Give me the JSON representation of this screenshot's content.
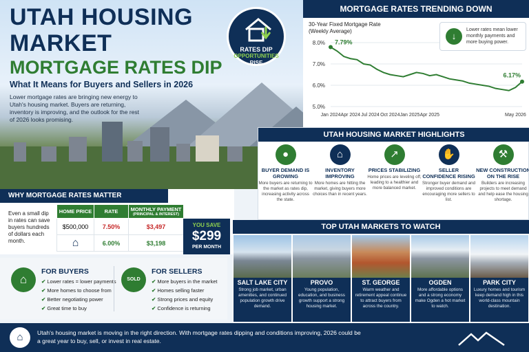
{
  "hero": {
    "title_line1": "UTAH HOUSING",
    "title_line2": "MARKET",
    "title_line3": "MORTGAGE RATES DIP",
    "subtitle": "What It Means for Buyers and Sellers in 2026",
    "intro": "Lower mortgage rates are bringing new energy to Utah's housing market. Buyers are returning, inventory is improving, and the outlook for the rest of 2026 looks promising.",
    "badge": {
      "line1": "RATES DIP",
      "line2": "OPPORTUNITIES",
      "line3": "RISE",
      "icon": "house-down-arrow-icon"
    }
  },
  "trend": {
    "header": "MORTGAGE RATES TRENDING DOWN",
    "chart_title": "30-Year Fixed Mortgage Rate",
    "chart_subtitle": "(Weekly Average)",
    "note": "Lower rates mean lower monthly payments and more buying power."
  },
  "chart_data": {
    "type": "line",
    "title": "30-Year Fixed Mortgage Rate",
    "subtitle": "(Weekly Average)",
    "x": [
      "Jan 2024",
      "Feb 2024",
      "Mar 2024",
      "Apr 2024",
      "May 2024",
      "Jun 2024",
      "Jul 2024",
      "Aug 2024",
      "Sep 2024",
      "Oct 2024",
      "Nov 2024",
      "Dec 2024",
      "Jan 2025",
      "Feb 2025",
      "Mar 2025",
      "Apr 2025",
      "May 2025",
      "Jun 2025",
      "Jul 2025",
      "Aug 2025",
      "Sep 2025",
      "Oct 2025",
      "Nov 2025",
      "Dec 2025",
      "Jan 2026",
      "Feb 2026",
      "Mar 2026",
      "Apr 2026",
      "May 2026",
      "Jun 2026"
    ],
    "values": [
      7.79,
      7.6,
      7.35,
      7.25,
      7.2,
      7.0,
      6.95,
      6.75,
      6.6,
      6.5,
      6.45,
      6.4,
      6.5,
      6.6,
      6.55,
      6.45,
      6.5,
      6.4,
      6.3,
      6.25,
      6.2,
      6.1,
      6.05,
      6.0,
      5.95,
      5.85,
      5.8,
      5.75,
      5.9,
      6.17
    ],
    "x_ticks": [
      "Jan 2024",
      "Apr 2024",
      "Jul 2024",
      "Oct 2024",
      "Jan 2025",
      "Apr 2025",
      "May 2026"
    ],
    "y_ticks": [
      "8.0%",
      "7.0%",
      "6.0%",
      "5.0%"
    ],
    "ylim": [
      5.0,
      8.0
    ],
    "start_label": "7.79%",
    "end_label": "6.17%",
    "series_color": "#2f7d32"
  },
  "highlights": {
    "header": "UTAH HOUSING MARKET HIGHLIGHTS",
    "items": [
      {
        "title": "BUYER DEMAND IS GROWING",
        "desc": "More buyers are returning to the market as rates dip, increasing activity across the state.",
        "icon": "people-icon",
        "color": "#2f7d32"
      },
      {
        "title": "INVENTORY IMPROVING",
        "desc": "More homes are hitting the market, giving buyers more choices than in recent years.",
        "icon": "house-icon",
        "color": "#0f2f57"
      },
      {
        "title": "PRICES STABILIZING",
        "desc": "Home prices are leveling off, leading to a healthier and more balanced market.",
        "icon": "chart-up-icon",
        "color": "#2f7d32"
      },
      {
        "title": "SELLER CONFIDENCE RISING",
        "desc": "Stronger buyer demand and improved conditions are encouraging more sellers to list.",
        "icon": "handshake-icon",
        "color": "#0f2f57"
      },
      {
        "title": "NEW CONSTRUCTION ON THE RISE",
        "desc": "Builders are increasing projects to meet demand and help ease the housing shortage.",
        "icon": "crane-icon",
        "color": "#2f7d32"
      }
    ]
  },
  "why": {
    "header": "WHY MORTGAGE RATES MATTER",
    "text": "Even a small dip in rates can save buyers hundreds of dollars each month.",
    "col_price": "HOME PRICE",
    "col_rate": "RATE",
    "col_payment": "MONTHLY PAYMENT",
    "col_payment_sub": "(PRINCIPAL & INTEREST)",
    "row1": {
      "price": "$500,000",
      "rate": "7.50%",
      "payment": "$3,497"
    },
    "row2": {
      "rate": "6.00%",
      "payment": "$3,198"
    },
    "save_label": "YOU SAVE",
    "save_amount": "$299",
    "save_unit": "PER MONTH"
  },
  "buyers": {
    "title": "FOR BUYERS",
    "items": [
      "Lower rates = lower payments",
      "More homes to choose from",
      "Better negotiating power",
      "Great time to buy"
    ]
  },
  "sellers": {
    "title": "FOR SELLERS",
    "sign": "SOLD",
    "items": [
      "More buyers in the market",
      "Homes selling faster",
      "Strong prices and equity",
      "Confidence is returning"
    ]
  },
  "markets": {
    "header": "TOP UTAH MARKETS TO WATCH",
    "items": [
      {
        "name": "SALT LAKE CITY",
        "desc": "Strong job market, urban amenities, and continued population growth drive demand."
      },
      {
        "name": "PROVO",
        "desc": "Young population, education, and business growth support a strong housing market."
      },
      {
        "name": "ST. GEORGE",
        "desc": "Warm weather and retirement appeal continue to attract buyers from across the country."
      },
      {
        "name": "OGDEN",
        "desc": "More affordable options and a strong economy make Ogden a hot market to watch."
      },
      {
        "name": "PARK CITY",
        "desc": "Luxury homes and tourism keep demand high in this world-class mountain destination."
      }
    ]
  },
  "footer": {
    "text": "Utah's housing market is moving in the right direction. With mortgage rates dipping and conditions improving, 2026 could be a great year to buy, sell, or invest in real estate."
  }
}
